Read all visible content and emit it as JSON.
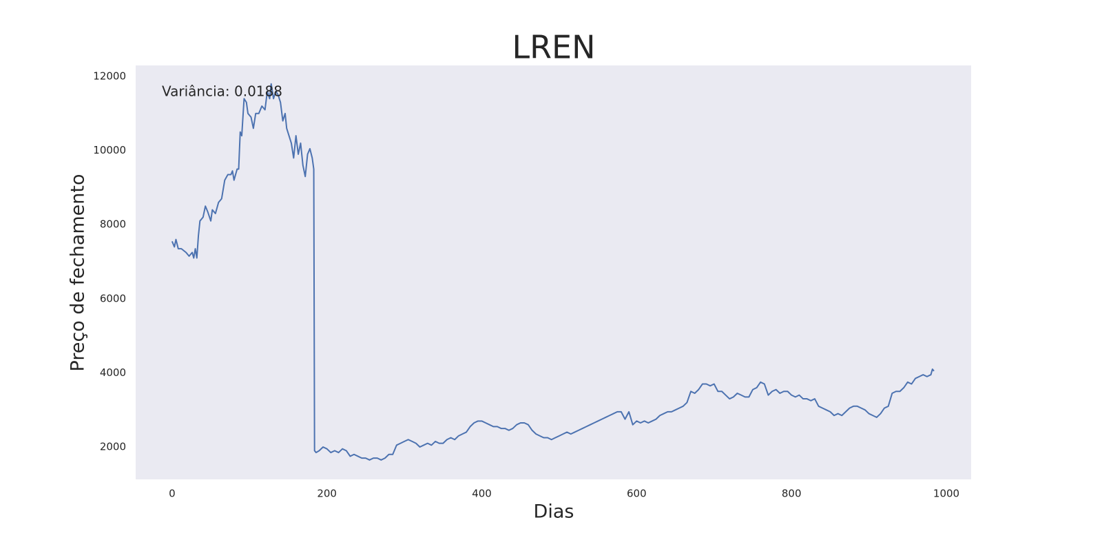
{
  "chart_data": {
    "type": "line",
    "title": "LREN",
    "xlabel": "Dias",
    "ylabel": "Preço de fechamento",
    "annotation": "Variância: 0.0188",
    "color": "#4c72b0",
    "background": "#eaeaf2",
    "grid": false,
    "xlim": [
      -47,
      1032
    ],
    "ylim": [
      1126,
      12297
    ],
    "xticks": [
      0,
      200,
      400,
      600,
      800,
      1000
    ],
    "yticks": [
      2000,
      4000,
      6000,
      8000,
      10000,
      12000
    ],
    "x": [
      0,
      3,
      5,
      8,
      12,
      18,
      22,
      26,
      28,
      30,
      32,
      34,
      36,
      40,
      43,
      46,
      50,
      52,
      56,
      60,
      64,
      68,
      72,
      76,
      78,
      80,
      84,
      86,
      88,
      90,
      93,
      96,
      98,
      102,
      105,
      108,
      112,
      116,
      120,
      123,
      126,
      128,
      131,
      134,
      137,
      140,
      143,
      146,
      148,
      151,
      154,
      157,
      160,
      163,
      166,
      169,
      172,
      175,
      178,
      181,
      183,
      184,
      186,
      190,
      195,
      200,
      205,
      210,
      215,
      220,
      225,
      230,
      235,
      240,
      245,
      250,
      255,
      260,
      265,
      270,
      275,
      280,
      285,
      290,
      295,
      300,
      305,
      310,
      315,
      320,
      325,
      330,
      335,
      340,
      345,
      350,
      355,
      360,
      365,
      370,
      375,
      380,
      385,
      390,
      395,
      400,
      405,
      410,
      415,
      420,
      425,
      430,
      435,
      440,
      445,
      450,
      455,
      460,
      465,
      470,
      475,
      480,
      485,
      490,
      495,
      500,
      505,
      510,
      515,
      520,
      525,
      530,
      535,
      540,
      545,
      550,
      555,
      560,
      565,
      570,
      575,
      580,
      585,
      590,
      595,
      600,
      605,
      610,
      615,
      620,
      625,
      630,
      635,
      640,
      645,
      650,
      655,
      660,
      665,
      670,
      675,
      680,
      685,
      690,
      695,
      700,
      705,
      710,
      715,
      720,
      725,
      730,
      735,
      740,
      745,
      750,
      755,
      760,
      765,
      770,
      775,
      780,
      785,
      790,
      795,
      800,
      805,
      810,
      815,
      820,
      825,
      830,
      835,
      840,
      845,
      850,
      855,
      860,
      865,
      870,
      875,
      880,
      885,
      890,
      895,
      900,
      905,
      910,
      915,
      920,
      925,
      930,
      935,
      940,
      945,
      950,
      955,
      960,
      965,
      970,
      975,
      980,
      982,
      984
    ],
    "values": [
      7550,
      7400,
      7600,
      7350,
      7350,
      7250,
      7150,
      7250,
      7100,
      7350,
      7100,
      7700,
      8100,
      8200,
      8500,
      8350,
      8100,
      8400,
      8300,
      8600,
      8700,
      9200,
      9350,
      9350,
      9450,
      9200,
      9500,
      9500,
      10500,
      10400,
      11400,
      11300,
      11000,
      10900,
      10600,
      11000,
      11000,
      11200,
      11100,
      11600,
      11400,
      11800,
      11400,
      11600,
      11500,
      11300,
      10800,
      11000,
      10600,
      10400,
      10200,
      9800,
      10400,
      9900,
      10200,
      9600,
      9300,
      9900,
      10050,
      9800,
      9500,
      1900,
      1850,
      1900,
      2000,
      1950,
      1850,
      1900,
      1850,
      1950,
      1900,
      1750,
      1800,
      1750,
      1700,
      1700,
      1650,
      1700,
      1700,
      1650,
      1700,
      1800,
      1800,
      2050,
      2100,
      2150,
      2200,
      2150,
      2100,
      2000,
      2050,
      2100,
      2050,
      2150,
      2100,
      2100,
      2200,
      2250,
      2200,
      2300,
      2350,
      2400,
      2550,
      2650,
      2700,
      2700,
      2650,
      2600,
      2550,
      2550,
      2500,
      2500,
      2450,
      2500,
      2600,
      2650,
      2650,
      2600,
      2450,
      2350,
      2300,
      2250,
      2250,
      2200,
      2250,
      2300,
      2350,
      2400,
      2350,
      2400,
      2450,
      2500,
      2550,
      2600,
      2650,
      2700,
      2750,
      2800,
      2850,
      2900,
      2950,
      2950,
      2750,
      2950,
      2600,
      2700,
      2650,
      2700,
      2650,
      2700,
      2750,
      2850,
      2900,
      2950,
      2950,
      3000,
      3050,
      3100,
      3200,
      3500,
      3450,
      3550,
      3700,
      3700,
      3650,
      3700,
      3500,
      3500,
      3400,
      3300,
      3350,
      3450,
      3400,
      3350,
      3350,
      3550,
      3600,
      3750,
      3700,
      3400,
      3500,
      3550,
      3450,
      3500,
      3500,
      3400,
      3350,
      3400,
      3300,
      3300,
      3250,
      3300,
      3100,
      3050,
      3000,
      2950,
      2850,
      2900,
      2850,
      2950,
      3050,
      3100,
      3100,
      3050,
      3000,
      2900,
      2850,
      2800,
      2900,
      3050,
      3100,
      3450,
      3500,
      3500,
      3600,
      3750,
      3700,
      3850,
      3900,
      3950,
      3900,
      3950,
      4100,
      4050
    ]
  }
}
